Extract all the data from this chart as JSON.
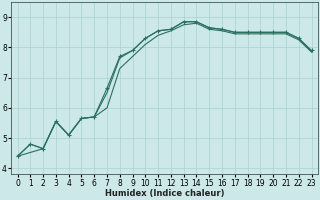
{
  "xlabel": "Humidex (Indice chaleur)",
  "ylabel": "",
  "bg_color": "#cce8e8",
  "grid_color": "#aad0d0",
  "line_color": "#2a7060",
  "xlim": [
    -0.5,
    23.5
  ],
  "ylim": [
    3.8,
    9.5
  ],
  "yticks": [
    4,
    5,
    6,
    7,
    8,
    9
  ],
  "xticks": [
    0,
    1,
    2,
    3,
    4,
    5,
    6,
    7,
    8,
    9,
    10,
    11,
    12,
    13,
    14,
    15,
    16,
    17,
    18,
    19,
    20,
    21,
    22,
    23
  ],
  "series": [
    {
      "x": [
        0,
        1,
        2,
        3,
        4,
        5,
        6,
        7,
        8,
        9,
        10,
        11,
        12,
        13,
        14,
        15,
        16,
        17,
        18,
        19,
        20,
        21,
        22,
        23
      ],
      "y": [
        4.4,
        4.8,
        4.65,
        5.55,
        5.1,
        5.65,
        5.7,
        6.65,
        7.7,
        7.9,
        8.3,
        8.55,
        8.6,
        8.85,
        8.85,
        8.65,
        8.6,
        8.5,
        8.5,
        8.5,
        8.5,
        8.5,
        8.3,
        7.9
      ],
      "linestyle": "-",
      "has_marker": true
    },
    {
      "x": [
        0,
        2,
        3,
        4,
        5,
        6,
        7,
        8,
        9,
        10,
        11,
        12,
        13,
        14,
        15,
        16,
        17,
        18,
        19,
        20,
        21,
        22,
        23
      ],
      "y": [
        4.4,
        4.65,
        5.55,
        5.1,
        5.65,
        5.7,
        6.5,
        7.65,
        7.9,
        8.3,
        8.55,
        8.6,
        8.85,
        8.85,
        8.65,
        8.6,
        8.5,
        8.5,
        8.5,
        8.5,
        8.5,
        8.3,
        7.85
      ],
      "linestyle": "-",
      "has_marker": false
    },
    {
      "x": [
        0,
        1,
        2,
        3,
        4,
        5,
        6,
        7,
        8,
        9,
        10,
        11,
        12,
        13,
        14,
        15,
        16,
        17,
        18,
        19,
        20,
        21,
        22,
        23
      ],
      "y": [
        4.4,
        4.8,
        4.65,
        5.55,
        5.1,
        5.65,
        5.7,
        6.0,
        7.3,
        7.7,
        8.1,
        8.4,
        8.55,
        8.75,
        8.8,
        8.6,
        8.55,
        8.45,
        8.45,
        8.45,
        8.45,
        8.45,
        8.25,
        7.85
      ],
      "linestyle": "-",
      "has_marker": false
    }
  ]
}
